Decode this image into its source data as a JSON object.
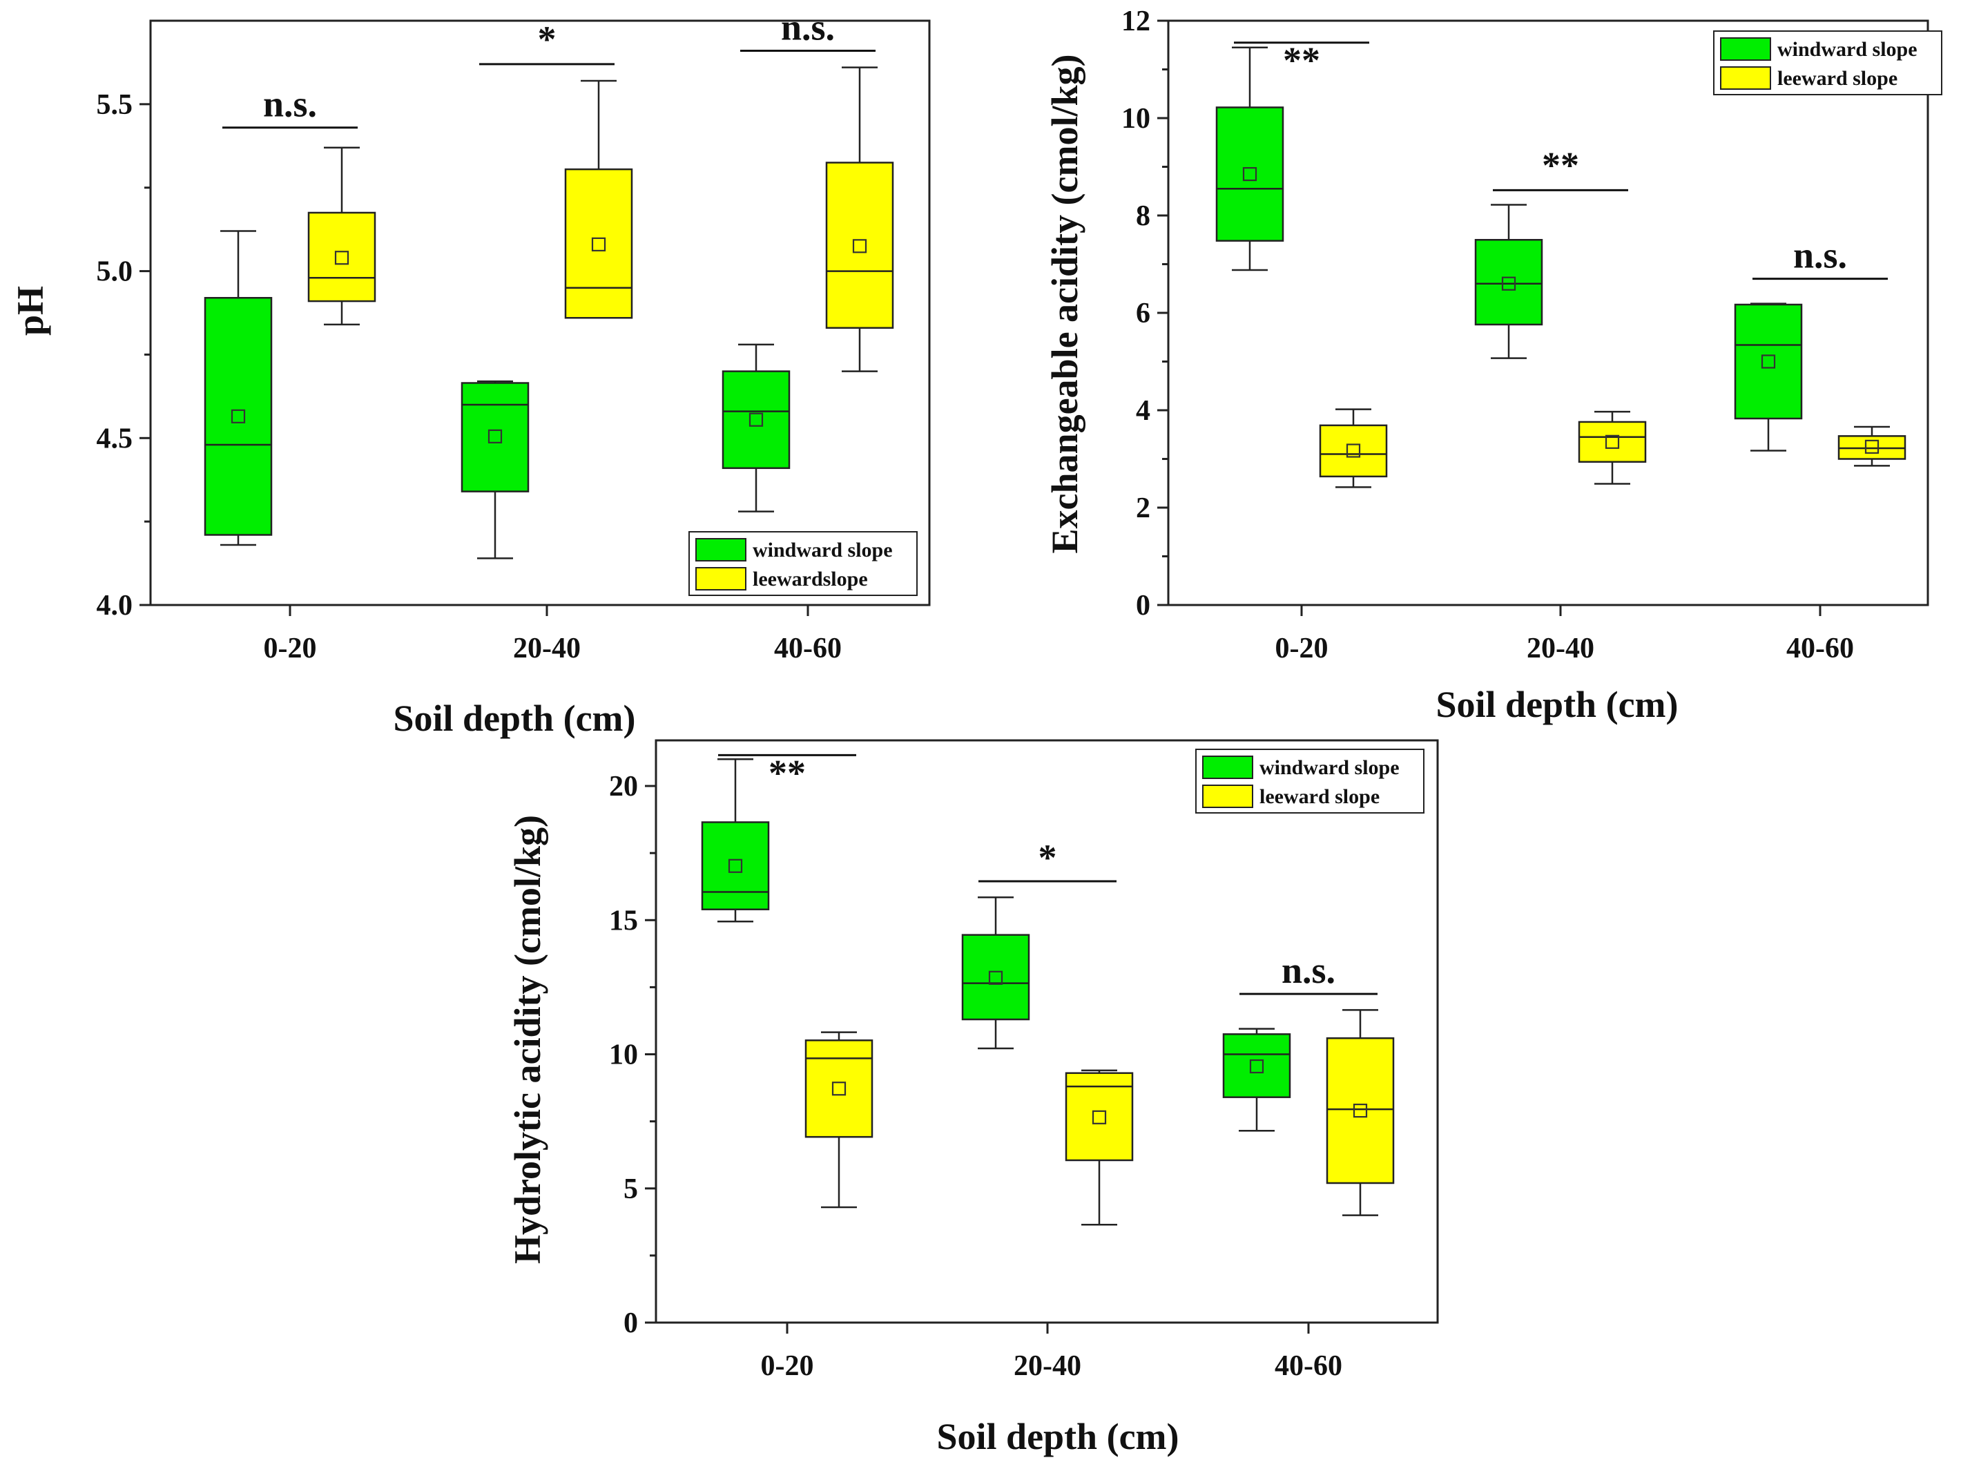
{
  "colors": {
    "windward": "#00ee00",
    "leeward": "#ffff00"
  },
  "chart_data": [
    {
      "id": "ph",
      "type": "box",
      "title": "",
      "xlabel": "Soil depth (cm)",
      "ylabel": "pH",
      "categories": [
        "0-20",
        "20-40",
        "40-60"
      ],
      "ylim": [
        4.0,
        5.75
      ],
      "yticks": [
        4.0,
        4.5,
        5.0,
        5.5
      ],
      "ytick_labels": [
        "4.0",
        "4.5",
        "5.0",
        "5.5"
      ],
      "minor_yticks": [
        4.25,
        4.75,
        5.25
      ],
      "legend": [
        "windward slope",
        "leewardslope"
      ],
      "legend_position": "bottom-right",
      "series": [
        {
          "name": "windward slope",
          "color_key": "windward",
          "boxes": [
            {
              "min": 4.18,
              "q1": 4.21,
              "median": 4.48,
              "q3": 4.92,
              "max": 5.12,
              "mean": 4.565
            },
            {
              "min": 4.14,
              "q1": 4.34,
              "median": 4.6,
              "q3": 4.665,
              "max": 4.67,
              "mean": 4.505
            },
            {
              "min": 4.28,
              "q1": 4.41,
              "median": 4.58,
              "q3": 4.7,
              "max": 4.78,
              "mean": 4.555
            }
          ]
        },
        {
          "name": "leeward slope",
          "color_key": "leeward",
          "boxes": [
            {
              "min": 4.84,
              "q1": 4.91,
              "median": 4.98,
              "q3": 5.175,
              "max": 5.37,
              "mean": 5.04
            },
            {
              "min": 4.86,
              "q1": 4.86,
              "median": 4.95,
              "q3": 5.305,
              "max": 5.57,
              "mean": 5.08
            },
            {
              "min": 4.7,
              "q1": 4.83,
              "median": 5.0,
              "q3": 5.325,
              "max": 5.61,
              "mean": 5.075
            }
          ]
        }
      ],
      "significance": [
        {
          "category": "0-20",
          "label": "n.s.",
          "y": 5.43
        },
        {
          "category": "20-40",
          "label": "*",
          "y": 5.62
        },
        {
          "category": "40-60",
          "label": "n.s.",
          "y": 5.66
        }
      ]
    },
    {
      "id": "ea",
      "type": "box",
      "title": "",
      "xlabel": "Soil depth (cm)",
      "ylabel": "Exchangeable acidity (cmol/kg)",
      "categories": [
        "0-20",
        "20-40",
        "40-60"
      ],
      "ylim": [
        0,
        12
      ],
      "yticks": [
        0,
        2,
        4,
        6,
        8,
        10,
        12
      ],
      "ytick_labels": [
        "0",
        "2",
        "4",
        "6",
        "8",
        "10",
        "12"
      ],
      "minor_yticks": [
        1,
        3,
        5,
        7,
        9,
        11
      ],
      "legend": [
        "windward slope",
        "leeward slope"
      ],
      "legend_position": "top-right",
      "series": [
        {
          "name": "windward slope",
          "color_key": "windward",
          "boxes": [
            {
              "min": 6.88,
              "q1": 7.48,
              "median": 8.55,
              "q3": 10.22,
              "max": 11.45,
              "mean": 8.85
            },
            {
              "min": 5.07,
              "q1": 5.76,
              "median": 6.6,
              "q3": 7.5,
              "max": 8.22,
              "mean": 6.6
            },
            {
              "min": 3.17,
              "q1": 3.83,
              "median": 5.34,
              "q3": 6.17,
              "max": 6.19,
              "mean": 5.0
            }
          ]
        },
        {
          "name": "leeward slope",
          "color_key": "leeward",
          "boxes": [
            {
              "min": 2.42,
              "q1": 2.64,
              "median": 3.1,
              "q3": 3.69,
              "max": 4.02,
              "mean": 3.17
            },
            {
              "min": 2.49,
              "q1": 2.94,
              "median": 3.45,
              "q3": 3.76,
              "max": 3.97,
              "mean": 3.35
            },
            {
              "min": 2.86,
              "q1": 3.0,
              "median": 3.22,
              "q3": 3.47,
              "max": 3.66,
              "mean": 3.25
            }
          ]
        }
      ],
      "significance": [
        {
          "category": "0-20",
          "label": "**",
          "y": 11.55
        },
        {
          "category": "20-40",
          "label": "**",
          "y": 8.52
        },
        {
          "category": "40-60",
          "label": "n.s.",
          "y": 6.7
        }
      ]
    },
    {
      "id": "ha",
      "type": "box",
      "title": "",
      "xlabel": "Soil depth (cm)",
      "ylabel": "Hydrolytic acidity (cmol/kg)",
      "categories": [
        "0-20",
        "20-40",
        "40-60"
      ],
      "ylim": [
        0,
        21.7
      ],
      "yticks": [
        0,
        5,
        10,
        15,
        20
      ],
      "ytick_labels": [
        "0",
        "5",
        "10",
        "15",
        "20"
      ],
      "minor_yticks": [
        2.5,
        7.5,
        12.5,
        17.5
      ],
      "legend": [
        "windward slope",
        "leeward slope"
      ],
      "legend_position": "top-right",
      "series": [
        {
          "name": "windward slope",
          "color_key": "windward",
          "boxes": [
            {
              "min": 14.95,
              "q1": 15.4,
              "median": 16.05,
              "q3": 18.65,
              "max": 21.0,
              "mean": 17.02
            },
            {
              "min": 10.22,
              "q1": 11.3,
              "median": 12.65,
              "q3": 14.45,
              "max": 15.85,
              "mean": 12.85
            },
            {
              "min": 7.15,
              "q1": 8.4,
              "median": 10.0,
              "q3": 10.75,
              "max": 10.95,
              "mean": 9.55
            }
          ]
        },
        {
          "name": "leeward slope",
          "color_key": "leeward",
          "boxes": [
            {
              "min": 4.3,
              "q1": 6.92,
              "median": 9.85,
              "q3": 10.52,
              "max": 10.82,
              "mean": 8.72
            },
            {
              "min": 3.65,
              "q1": 6.05,
              "median": 8.8,
              "q3": 9.3,
              "max": 9.4,
              "mean": 7.65
            },
            {
              "min": 4.0,
              "q1": 5.2,
              "median": 7.95,
              "q3": 10.6,
              "max": 11.65,
              "mean": 7.9
            }
          ]
        }
      ],
      "significance": [
        {
          "category": "0-20",
          "label": "**",
          "y": 21.15
        },
        {
          "category": "20-40",
          "label": "*",
          "y": 16.45
        },
        {
          "category": "40-60",
          "label": "n.s.",
          "y": 12.25
        }
      ]
    }
  ]
}
